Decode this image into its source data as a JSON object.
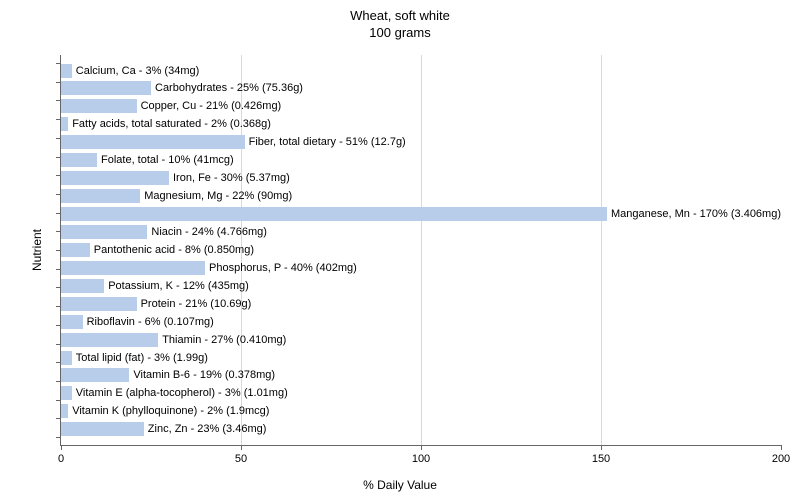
{
  "chart": {
    "type": "bar-horizontal",
    "title_line_1": "Wheat, soft white",
    "title_line_2": "100 grams",
    "x_axis_title": "% Daily Value",
    "y_axis_title": "Nutrient",
    "xlim": [
      0,
      200
    ],
    "xtick_step": 50,
    "xticks": [
      0,
      50,
      100,
      150,
      200
    ],
    "bar_color": "#b7cde9",
    "grid_color": "#d8d8d8",
    "axis_color": "#666666",
    "background_color": "#ffffff",
    "label_fontsize": 11,
    "title_fontsize": 13,
    "axis_title_fontsize": 12,
    "nutrients": [
      {
        "name": "Calcium, Ca",
        "pct": 3,
        "amount": "34mg",
        "label": "Calcium, Ca - 3% (34mg)"
      },
      {
        "name": "Carbohydrates",
        "pct": 25,
        "amount": "75.36g",
        "label": "Carbohydrates - 25% (75.36g)"
      },
      {
        "name": "Copper, Cu",
        "pct": 21,
        "amount": "0.426mg",
        "label": "Copper, Cu - 21% (0.426mg)"
      },
      {
        "name": "Fatty acids, total saturated",
        "pct": 2,
        "amount": "0.368g",
        "label": "Fatty acids, total saturated - 2% (0.368g)"
      },
      {
        "name": "Fiber, total dietary",
        "pct": 51,
        "amount": "12.7g",
        "label": "Fiber, total dietary - 51% (12.7g)"
      },
      {
        "name": "Folate, total",
        "pct": 10,
        "amount": "41mcg",
        "label": "Folate, total - 10% (41mcg)"
      },
      {
        "name": "Iron, Fe",
        "pct": 30,
        "amount": "5.37mg",
        "label": "Iron, Fe - 30% (5.37mg)"
      },
      {
        "name": "Magnesium, Mg",
        "pct": 22,
        "amount": "90mg",
        "label": "Magnesium, Mg - 22% (90mg)"
      },
      {
        "name": "Manganese, Mn",
        "pct": 170,
        "amount": "3.406mg",
        "label": "Manganese, Mn - 170% (3.406mg)"
      },
      {
        "name": "Niacin",
        "pct": 24,
        "amount": "4.766mg",
        "label": "Niacin - 24% (4.766mg)"
      },
      {
        "name": "Pantothenic acid",
        "pct": 8,
        "amount": "0.850mg",
        "label": "Pantothenic acid - 8% (0.850mg)"
      },
      {
        "name": "Phosphorus, P",
        "pct": 40,
        "amount": "402mg",
        "label": "Phosphorus, P - 40% (402mg)"
      },
      {
        "name": "Potassium, K",
        "pct": 12,
        "amount": "435mg",
        "label": "Potassium, K - 12% (435mg)"
      },
      {
        "name": "Protein",
        "pct": 21,
        "amount": "10.69g",
        "label": "Protein - 21% (10.69g)"
      },
      {
        "name": "Riboflavin",
        "pct": 6,
        "amount": "0.107mg",
        "label": "Riboflavin - 6% (0.107mg)"
      },
      {
        "name": "Thiamin",
        "pct": 27,
        "amount": "0.410mg",
        "label": "Thiamin - 27% (0.410mg)"
      },
      {
        "name": "Total lipid (fat)",
        "pct": 3,
        "amount": "1.99g",
        "label": "Total lipid (fat) - 3% (1.99g)"
      },
      {
        "name": "Vitamin B-6",
        "pct": 19,
        "amount": "0.378mg",
        "label": "Vitamin B-6 - 19% (0.378mg)"
      },
      {
        "name": "Vitamin E (alpha-tocopherol)",
        "pct": 3,
        "amount": "1.01mg",
        "label": "Vitamin E (alpha-tocopherol) - 3% (1.01mg)"
      },
      {
        "name": "Vitamin K (phylloquinone)",
        "pct": 2,
        "amount": "1.9mcg",
        "label": "Vitamin K (phylloquinone) - 2% (1.9mcg)"
      },
      {
        "name": "Zinc, Zn",
        "pct": 23,
        "amount": "3.46mg",
        "label": "Zinc, Zn - 23% (3.46mg)"
      }
    ]
  }
}
